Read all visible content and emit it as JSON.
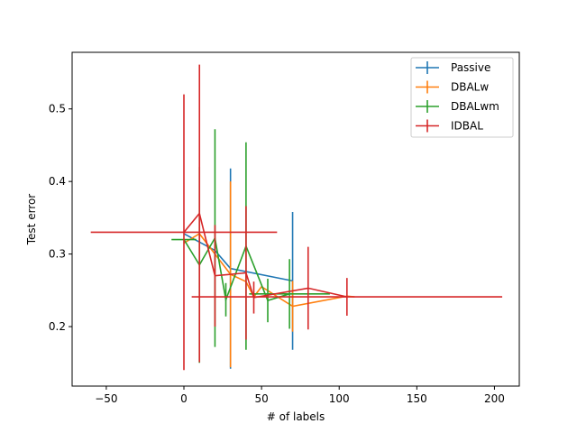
{
  "chart_data": {
    "type": "line",
    "title": "",
    "xlabel": "# of labels",
    "ylabel": "Test error",
    "xlim": [
      -72,
      216
    ],
    "ylim": [
      0.118,
      0.578
    ],
    "xticks": [
      -50,
      0,
      50,
      100,
      150,
      200
    ],
    "xtick_labels": [
      "−50",
      "0",
      "50",
      "100",
      "150",
      "200"
    ],
    "yticks": [
      0.2,
      0.3,
      0.4,
      0.5
    ],
    "ytick_labels": [
      "0.2",
      "0.3",
      "0.4",
      "0.5"
    ],
    "grid": false,
    "legend_position": "top-right",
    "series": [
      {
        "name": "Passive",
        "color": "#1f77b4",
        "x": [
          0,
          20,
          30,
          70
        ],
        "y": [
          0.328,
          0.305,
          0.28,
          0.263
        ],
        "yerr": [
          0.0,
          0.0,
          0.138,
          0.095
        ],
        "xerr": [
          0,
          0,
          0,
          0
        ]
      },
      {
        "name": "DBALw",
        "color": "#ff7f0e",
        "x": [
          0,
          10,
          20,
          30,
          40,
          45,
          50,
          70,
          105,
          110
        ],
        "y": [
          0.315,
          0.328,
          0.3,
          0.272,
          0.262,
          0.241,
          0.255,
          0.228,
          0.242,
          0.241
        ],
        "yerr": [
          0.0,
          0.0,
          0.0,
          0.128,
          0.0,
          0.0,
          0.0,
          0.035,
          0.0,
          0.0
        ],
        "xerr": [
          0,
          0,
          0,
          0,
          0,
          0,
          0,
          0,
          0,
          0
        ]
      },
      {
        "name": "DBALwm",
        "color": "#2ca02c",
        "x": [
          0,
          10,
          20,
          27,
          40,
          54,
          68
        ],
        "y": [
          0.32,
          0.285,
          0.322,
          0.237,
          0.311,
          0.236,
          0.245
        ],
        "yerr": [
          0.0,
          0.135,
          0.15,
          0.023,
          0.143,
          0.03,
          0.048
        ],
        "xerr": [
          8,
          0,
          0,
          0,
          0,
          0,
          26
        ]
      },
      {
        "name": "IDBAL",
        "color": "#d62728",
        "x": [
          0,
          10,
          20,
          40,
          45,
          80,
          105
        ],
        "y": [
          0.33,
          0.356,
          0.27,
          0.274,
          0.24,
          0.253,
          0.241
        ],
        "yerr": [
          0.19,
          0.205,
          0.07,
          0.092,
          0.022,
          0.057,
          0.026
        ],
        "xerr": [
          60,
          0,
          0,
          0,
          0,
          0,
          100
        ]
      }
    ]
  }
}
